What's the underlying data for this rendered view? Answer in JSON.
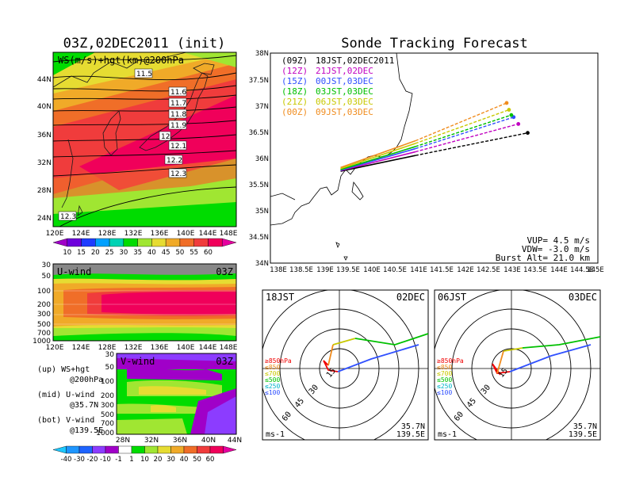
{
  "colors": {
    "ws_scale": [
      "#a000c8",
      "#6e00dc",
      "#1e3cff",
      "#00a0ff",
      "#00d2b4",
      "#00dc00",
      "#a0e632",
      "#e6dc32",
      "#f0aa28",
      "#f06e28",
      "#f03c3c",
      "#f0005a",
      "#e600a0"
    ],
    "v_scale": [
      "#1ec8ff",
      "#1e96ff",
      "#1e64ff",
      "#8c3cff",
      "#a000c8",
      "#ffffff",
      "#00dc00",
      "#a0e632",
      "#e6dc32",
      "#f0aa28",
      "#f06e28",
      "#f03c3c",
      "#f0005a",
      "#e600a0"
    ],
    "track_colors": [
      "#000000",
      "#c000c0",
      "#3050ff",
      "#00c000",
      "#c8c800",
      "#f08c1e"
    ],
    "level_colors": [
      "#f00000",
      "#f08c1e",
      "#c8c800",
      "#00c000",
      "#00b4c8",
      "#3050ff"
    ]
  },
  "map_panel": {
    "title": "03Z,02DEC2011 (init)",
    "label": "WS(m/s)+hgt(km)@200hPa",
    "lat_ticks": [
      "44N",
      "40N",
      "36N",
      "32N",
      "28N",
      "24N"
    ],
    "lon_ticks": [
      "120E",
      "124E",
      "128E",
      "132E",
      "136E",
      "140E",
      "144E",
      "148E"
    ],
    "contour_labels": [
      "11.5",
      "11.6",
      "11.7",
      "11.8",
      "11.9",
      "12",
      "12.1",
      "12.2",
      "12.3",
      "12.3"
    ],
    "ws_scale_labels": [
      "10",
      "15",
      "20",
      "25",
      "30",
      "35",
      "40",
      "45",
      "50",
      "55",
      "60"
    ]
  },
  "u_panel": {
    "label": "U-wind",
    "time": "03Z",
    "levels": [
      "30",
      "50",
      "100",
      "200",
      "300",
      "500",
      "700",
      "1000"
    ],
    "lon_ticks": [
      "120E",
      "124E",
      "128E",
      "132E",
      "136E",
      "140E",
      "144E",
      "148E"
    ]
  },
  "v_panel": {
    "label": "V-wind",
    "time": "03Z",
    "levels": [
      "30",
      "50",
      "100",
      "200",
      "300",
      "500",
      "700",
      "1000"
    ],
    "lat_ticks": [
      "28N",
      "32N",
      "36N",
      "40N",
      "44N"
    ],
    "scale_labels": [
      "-40",
      "-30",
      "-20",
      "-10",
      "-1",
      "1",
      "10",
      "20",
      "30",
      "40",
      "50",
      "60"
    ]
  },
  "legend_notes": [
    {
      "name": "(up) WS+hgt",
      "sub": "@200hPa"
    },
    {
      "name": "(mid) U-wind",
      "sub": "@35.7N"
    },
    {
      "name": "(bot) V-wind",
      "sub": "@139.5E"
    }
  ],
  "track_panel": {
    "title": "Sonde Tracking Forecast",
    "legend": [
      {
        "code": "(09Z)",
        "label": "18JST,02DEC2011"
      },
      {
        "code": "(12Z)",
        "label": "21JST,02DEC"
      },
      {
        "code": "(15Z)",
        "label": "00JST,03DEC"
      },
      {
        "code": "(18Z)",
        "label": "03JST,03DEC"
      },
      {
        "code": "(21Z)",
        "label": "06JST,03DEC"
      },
      {
        "code": "(00Z)",
        "label": "09JST,03DEC"
      }
    ],
    "params": [
      "VUP= 4.5 m/s",
      "VDW= -3.0 m/s",
      "Burst Alt= 21.0 km"
    ],
    "lat_ticks": [
      "38N",
      "37.5N",
      "37N",
      "36.5N",
      "36N",
      "35.5N",
      "35N",
      "34.5N",
      "34N"
    ],
    "lon_ticks": [
      "138E",
      "138.5E",
      "139E",
      "139.5E",
      "140E",
      "140.5E",
      "141E",
      "141.5E",
      "142E",
      "142.5E",
      "143E",
      "143.5E",
      "144E",
      "144.5E",
      "145E"
    ]
  },
  "chart_data": [
    {
      "type": "line",
      "title": "Sonde Tracking Forecast",
      "xlabel": "",
      "ylabel": "",
      "xlim": [
        138,
        145
      ],
      "ylim": [
        34,
        38
      ],
      "series": [
        {
          "name": "(09Z) 18JST,02DEC2011",
          "points": [
            [
              139.5,
              35.75
            ],
            [
              141.1,
              36.05
            ],
            [
              143.5,
              36.48
            ]
          ]
        },
        {
          "name": "(12Z) 21JST,02DEC",
          "points": [
            [
              139.5,
              35.76
            ],
            [
              141.1,
              36.12
            ],
            [
              143.3,
              36.65
            ]
          ]
        },
        {
          "name": "(15Z) 00JST,03DEC",
          "points": [
            [
              139.5,
              35.77
            ],
            [
              141.1,
              36.18
            ],
            [
              143.2,
              36.78
            ]
          ]
        },
        {
          "name": "(18Z) 03JST,03DEC",
          "points": [
            [
              139.5,
              35.78
            ],
            [
              141.1,
              36.22
            ],
            [
              143.15,
              36.82
            ]
          ]
        },
        {
          "name": "(21Z) 06JST,03DEC",
          "points": [
            [
              139.5,
              35.8
            ],
            [
              141.1,
              36.28
            ],
            [
              143.1,
              36.92
            ]
          ]
        },
        {
          "name": "(00Z) 09JST,03DEC",
          "points": [
            [
              139.5,
              35.82
            ],
            [
              141.1,
              36.33
            ],
            [
              143.05,
              37.05
            ]
          ]
        }
      ]
    },
    {
      "type": "line",
      "panel": "hodograph",
      "time": "18JST",
      "date": "02DEC",
      "rings": [
        "15",
        "30",
        "45",
        "60"
      ],
      "unit": "ms-1",
      "location": [
        "35.7N",
        "139.5E"
      ],
      "levels": [
        "≥850hPa",
        "≤850",
        "≤700",
        "≤500",
        "≤250",
        "≤100"
      ]
    },
    {
      "type": "line",
      "panel": "hodograph",
      "time": "06JST",
      "date": "03DEC",
      "rings": [
        "15",
        "30",
        "45",
        "60"
      ],
      "unit": "ms-1",
      "location": [
        "35.7N",
        "139.5E"
      ],
      "levels": [
        "≥850hPa",
        "≤850",
        "≤700",
        "≤500",
        "≤250",
        "≤100"
      ]
    }
  ]
}
